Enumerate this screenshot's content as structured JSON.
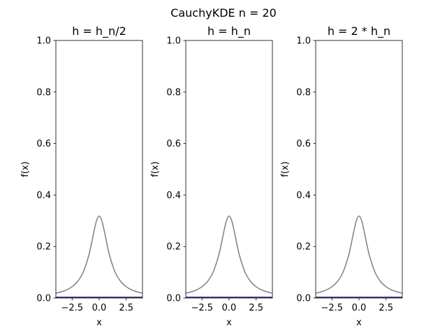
{
  "figure": {
    "suptitle": "CauchyKDE n = 20"
  },
  "chart_data": [
    {
      "type": "line",
      "title": "h = h_n/2",
      "xlabel": "x",
      "ylabel": "f(x)",
      "xlim": [
        -4,
        4
      ],
      "ylim": [
        0,
        1.0
      ],
      "xticks": [
        -2.5,
        0.0,
        2.5
      ],
      "xtick_labels": [
        "−2.5",
        "0.0",
        "2.5"
      ],
      "yticks": [
        0.0,
        0.2,
        0.4,
        0.6,
        0.8,
        1.0
      ],
      "ytick_labels": [
        "0.0",
        "0.2",
        "0.4",
        "0.6",
        "0.8",
        "1.0"
      ],
      "grid": false,
      "series": [
        {
          "color": "#808080",
          "x": [
            -4.0,
            -3.5,
            -3.0,
            -2.5,
            -2.0,
            -1.5,
            -1.0,
            -0.75,
            -0.5,
            -0.25,
            0.0,
            0.25,
            0.5,
            0.75,
            1.0,
            1.5,
            2.0,
            2.5,
            3.0,
            3.5,
            4.0
          ],
          "y": [
            0.0187,
            0.0241,
            0.0318,
            0.0439,
            0.0637,
            0.0979,
            0.1592,
            0.2037,
            0.2546,
            0.2996,
            0.3183,
            0.2996,
            0.2546,
            0.2037,
            0.1592,
            0.0979,
            0.0637,
            0.0439,
            0.0318,
            0.0241,
            0.0187
          ]
        },
        {
          "color": "#0000aa",
          "x": [
            -4.0,
            4.0
          ],
          "y": [
            0.0,
            0.0
          ]
        },
        {
          "color": "#808000",
          "x": [
            -4.0,
            4.0
          ],
          "y": [
            0.0,
            0.0
          ]
        }
      ]
    },
    {
      "type": "line",
      "title": "h = h_n",
      "xlabel": "x",
      "ylabel": "f(x)",
      "xlim": [
        -4,
        4
      ],
      "ylim": [
        0,
        1.0
      ],
      "xticks": [
        -2.5,
        0.0,
        2.5
      ],
      "xtick_labels": [
        "−2.5",
        "0.0",
        "2.5"
      ],
      "yticks": [
        0.0,
        0.2,
        0.4,
        0.6,
        0.8,
        1.0
      ],
      "ytick_labels": [
        "0.0",
        "0.2",
        "0.4",
        "0.6",
        "0.8",
        "1.0"
      ],
      "grid": false,
      "series": [
        {
          "color": "#808080",
          "x": [
            -4.0,
            -3.5,
            -3.0,
            -2.5,
            -2.0,
            -1.5,
            -1.0,
            -0.75,
            -0.5,
            -0.25,
            0.0,
            0.25,
            0.5,
            0.75,
            1.0,
            1.5,
            2.0,
            2.5,
            3.0,
            3.5,
            4.0
          ],
          "y": [
            0.0187,
            0.0241,
            0.0318,
            0.0439,
            0.0637,
            0.0979,
            0.1592,
            0.2037,
            0.2546,
            0.2996,
            0.3183,
            0.2996,
            0.2546,
            0.2037,
            0.1592,
            0.0979,
            0.0637,
            0.0439,
            0.0318,
            0.0241,
            0.0187
          ]
        },
        {
          "color": "#0000aa",
          "x": [
            -4.0,
            4.0
          ],
          "y": [
            0.0,
            0.0
          ]
        },
        {
          "color": "#808000",
          "x": [
            -4.0,
            4.0
          ],
          "y": [
            0.0,
            0.0
          ]
        }
      ]
    },
    {
      "type": "line",
      "title": "h = 2 * h_n",
      "xlabel": "x",
      "ylabel": "f(x)",
      "xlim": [
        -4,
        4
      ],
      "ylim": [
        0,
        1.0
      ],
      "xticks": [
        -2.5,
        0.0,
        2.5
      ],
      "xtick_labels": [
        "−2.5",
        "0.0",
        "2.5"
      ],
      "yticks": [
        0.0,
        0.2,
        0.4,
        0.6,
        0.8,
        1.0
      ],
      "ytick_labels": [
        "0.0",
        "0.2",
        "0.4",
        "0.6",
        "0.8",
        "1.0"
      ],
      "grid": false,
      "series": [
        {
          "color": "#808080",
          "x": [
            -4.0,
            -3.5,
            -3.0,
            -2.5,
            -2.0,
            -1.5,
            -1.0,
            -0.75,
            -0.5,
            -0.25,
            0.0,
            0.25,
            0.5,
            0.75,
            1.0,
            1.5,
            2.0,
            2.5,
            3.0,
            3.5,
            4.0
          ],
          "y": [
            0.0187,
            0.0241,
            0.0318,
            0.0439,
            0.0637,
            0.0979,
            0.1592,
            0.2037,
            0.2546,
            0.2996,
            0.3183,
            0.2996,
            0.2546,
            0.2037,
            0.1592,
            0.0979,
            0.0637,
            0.0439,
            0.0318,
            0.0241,
            0.0187
          ]
        },
        {
          "color": "#0000aa",
          "x": [
            -4.0,
            4.0
          ],
          "y": [
            0.0,
            0.0
          ]
        },
        {
          "color": "#808000",
          "x": [
            -4.0,
            4.0
          ],
          "y": [
            0.0,
            0.0
          ]
        }
      ]
    }
  ]
}
